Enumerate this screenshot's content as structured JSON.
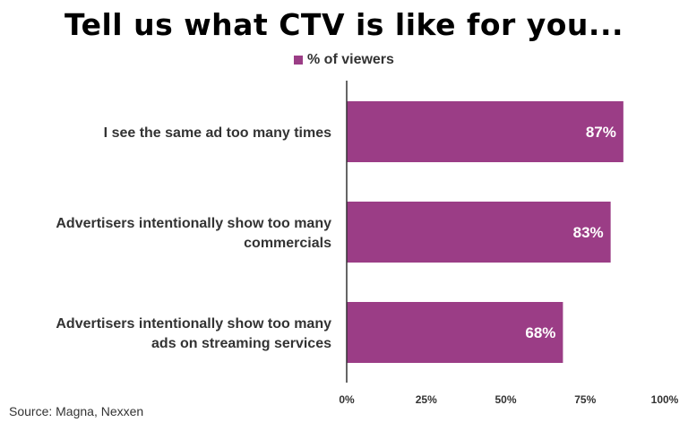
{
  "chart_data": {
    "type": "bar",
    "orientation": "horizontal",
    "title": "Tell us what CTV is like for you...",
    "categories": [
      [
        "I see the same ad too many times"
      ],
      [
        "Advertisers intentionally show too many",
        "commercials"
      ],
      [
        "Advertisers intentionally show too many",
        "ads on streaming services"
      ]
    ],
    "series": [
      {
        "name": "% of viewers",
        "values": [
          87,
          83,
          68
        ],
        "color": "#9b3d86"
      }
    ],
    "data_labels": [
      "87%",
      "83%",
      "68%"
    ],
    "xlim": [
      0,
      100
    ],
    "xticks": [
      0,
      25,
      50,
      75,
      100
    ],
    "xtick_labels": [
      "0%",
      "25%",
      "50%",
      "75%",
      "100%"
    ],
    "legend_position": "top",
    "grid": false
  },
  "source": "Source: Magna, Nexxen"
}
